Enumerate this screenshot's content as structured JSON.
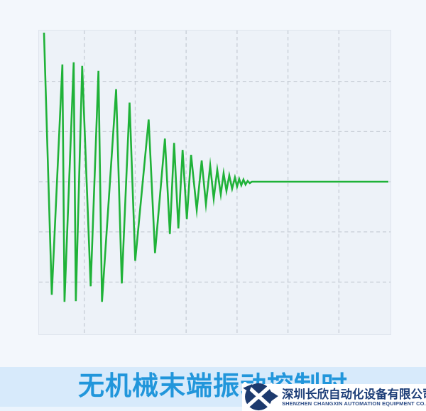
{
  "page": {
    "background": "#f3f7fc"
  },
  "footer": {
    "title": "无机械末端振动控制时",
    "title_color": "#2196db",
    "band_color": "#d7eafb",
    "substrip_color": "#ebf4fd"
  },
  "watermark": {
    "company_cn": "深圳长欣自动化设备有限公司",
    "company_en": "SHENZHEN CHANGXIN AUTOMATION EQUIPMENT CO. LTD",
    "logo_icon": "interlocked-x-ball-icon",
    "logo_color": "#1d3a6e",
    "text_color_cn": "#1d3e78",
    "text_color_en": "#2a4a85",
    "background": "#ffffff"
  },
  "chart_data": {
    "type": "line",
    "title": "",
    "xlabel": "",
    "ylabel": "",
    "series_name": "robot-end-vibration-without-suppression",
    "line_color": "#1fb238",
    "line_width": 2.6,
    "plot_bg": "#edf2f8",
    "border_color": "#dee4ed",
    "grid": {
      "style": "dashed",
      "color": "#c7cdd6",
      "dash": "5,4",
      "x_lines": [
        64,
        136,
        208,
        280,
        352,
        424
      ],
      "y_lines": [
        72,
        143,
        214,
        285,
        356
      ]
    },
    "x_range": [
      0,
      497
    ],
    "y_range": [
      0,
      430
    ],
    "baseline_y": 214,
    "points": [
      [
        7,
        3
      ],
      [
        18,
        374
      ],
      [
        33,
        48
      ],
      [
        36,
        384
      ],
      [
        49,
        45
      ],
      [
        52,
        383
      ],
      [
        61,
        50
      ],
      [
        73,
        362
      ],
      [
        84,
        57
      ],
      [
        89,
        384
      ],
      [
        109,
        83
      ],
      [
        117,
        358
      ],
      [
        128,
        102
      ],
      [
        136,
        326
      ],
      [
        155,
        126
      ],
      [
        164,
        315
      ],
      [
        178,
        153
      ],
      [
        185,
        288
      ],
      [
        191,
        159
      ],
      [
        197,
        280
      ],
      [
        203,
        169
      ],
      [
        209,
        267
      ],
      [
        215,
        176
      ],
      [
        223,
        254
      ],
      [
        230,
        184
      ],
      [
        236,
        246
      ],
      [
        242,
        191
      ],
      [
        247,
        238
      ],
      [
        252,
        197
      ],
      [
        257,
        232
      ],
      [
        261,
        202
      ],
      [
        265,
        227
      ],
      [
        269,
        205
      ],
      [
        273,
        224
      ],
      [
        277,
        208
      ],
      [
        280,
        221
      ],
      [
        283,
        210
      ],
      [
        286,
        219
      ],
      [
        289,
        211
      ],
      [
        292,
        218
      ],
      [
        295,
        213
      ],
      [
        298,
        216
      ],
      [
        301,
        214
      ],
      [
        494,
        214
      ]
    ]
  }
}
